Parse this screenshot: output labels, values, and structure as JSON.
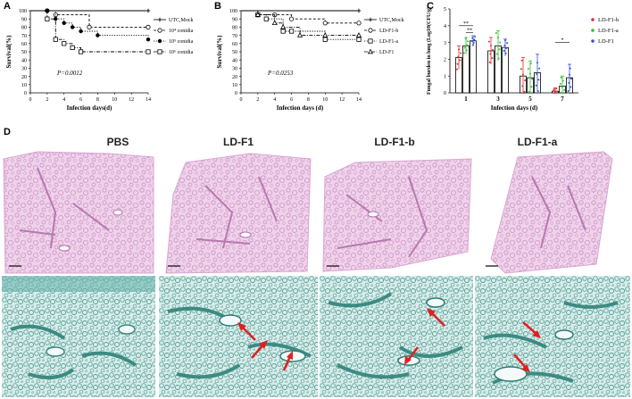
{
  "panels": {
    "A": "A",
    "B": "B",
    "C": "C",
    "D": "D"
  },
  "chart_data": [
    {
      "id": "A",
      "type": "line",
      "xlabel": "Infection days(d)",
      "ylabel": "Survival(%)",
      "xlim": [
        0,
        14
      ],
      "ylim": [
        0,
        100
      ],
      "xticks": [
        "0",
        "2",
        "4",
        "6",
        "8",
        "10",
        "12",
        "14"
      ],
      "yticks": [
        "0",
        "10",
        "20",
        "30",
        "40",
        "50",
        "60",
        "70",
        "80",
        "90",
        "100"
      ],
      "annotation": "P=0.0012",
      "legend_placement": "right",
      "series": [
        {
          "name": "UTC,Mock",
          "marker": "cross",
          "points": [
            [
              0,
              100
            ],
            [
              14,
              100
            ]
          ]
        },
        {
          "name": "10⁴ conidia",
          "marker": "circle",
          "points": [
            [
              0,
              100
            ],
            [
              2,
              100
            ],
            [
              3,
              95
            ],
            [
              7,
              80
            ],
            [
              14,
              80
            ]
          ]
        },
        {
          "name": "10⁵ conidia",
          "marker": "star",
          "points": [
            [
              0,
              100
            ],
            [
              2,
              100
            ],
            [
              3,
              90
            ],
            [
              4,
              85
            ],
            [
              5,
              80
            ],
            [
              6,
              75
            ],
            [
              8,
              70
            ],
            [
              14,
              65
            ]
          ]
        },
        {
          "name": "10⁶ conidia",
          "marker": "square",
          "points": [
            [
              0,
              100
            ],
            [
              2,
              90
            ],
            [
              3,
              65
            ],
            [
              4,
              60
            ],
            [
              5,
              55
            ],
            [
              6,
              50
            ],
            [
              14,
              50
            ]
          ]
        }
      ]
    },
    {
      "id": "B",
      "type": "line",
      "xlabel": "Infection days (d)",
      "ylabel": "Survival(%)",
      "xlim": [
        0,
        14
      ],
      "ylim": [
        0,
        100
      ],
      "xticks": [
        "0",
        "2",
        "4",
        "6",
        "8",
        "10",
        "12",
        "14"
      ],
      "yticks": [
        "0",
        "10",
        "20",
        "30",
        "40",
        "50",
        "60",
        "70",
        "80",
        "90",
        "100"
      ],
      "annotation": "P=0.0253",
      "legend_placement": "right",
      "series": [
        {
          "name": "UTC,Mock",
          "marker": "cross",
          "points": [
            [
              0,
              100
            ],
            [
              14,
              100
            ]
          ]
        },
        {
          "name": "LD-F1-b",
          "marker": "circle",
          "points": [
            [
              0,
              100
            ],
            [
              2,
              95
            ],
            [
              4,
              95
            ],
            [
              6,
              90
            ],
            [
              10,
              85
            ],
            [
              14,
              85
            ]
          ]
        },
        {
          "name": "LD-F1-a",
          "marker": "square",
          "points": [
            [
              0,
              100
            ],
            [
              2,
              95
            ],
            [
              3,
              90
            ],
            [
              5,
              75
            ],
            [
              6,
              75
            ],
            [
              10,
              65
            ],
            [
              14,
              65
            ]
          ]
        },
        {
          "name": "LD-F1",
          "marker": "triangle",
          "points": [
            [
              0,
              100
            ],
            [
              2,
              95
            ],
            [
              4,
              85
            ],
            [
              5,
              80
            ],
            [
              7,
              70
            ],
            [
              10,
              70
            ],
            [
              14,
              70
            ]
          ]
        }
      ]
    },
    {
      "id": "C",
      "type": "bar",
      "xlabel": "Infection days (d)",
      "ylabel": "Fungal burden in lung (Log10(CFU/g)",
      "categories": [
        "1",
        "3",
        "5",
        "7"
      ],
      "ylim": [
        0,
        5
      ],
      "yticks": [
        "0",
        "1",
        "2",
        "3",
        "4",
        "5"
      ],
      "legend_placement": "right",
      "significance": [
        "**",
        "**",
        "*"
      ],
      "series": [
        {
          "name": "LD-F1-b",
          "color": "#e03030",
          "values": [
            2.1,
            2.5,
            1.0,
            0.1
          ],
          "errors": [
            0.7,
            0.8,
            1.1,
            0.2
          ]
        },
        {
          "name": "LD-F1-a",
          "color": "#30c030",
          "values": [
            2.8,
            2.8,
            0.9,
            0.4
          ],
          "errors": [
            0.5,
            0.9,
            1.0,
            0.6
          ]
        },
        {
          "name": "LD-F1",
          "color": "#3050d0",
          "values": [
            3.1,
            2.7,
            1.2,
            0.9
          ],
          "errors": [
            0.3,
            0.5,
            1.1,
            0.8
          ]
        }
      ]
    }
  ],
  "histology": {
    "columns": [
      "PBS",
      "LD-F1",
      "LD-F1-b",
      "LD-F1-a"
    ]
  }
}
